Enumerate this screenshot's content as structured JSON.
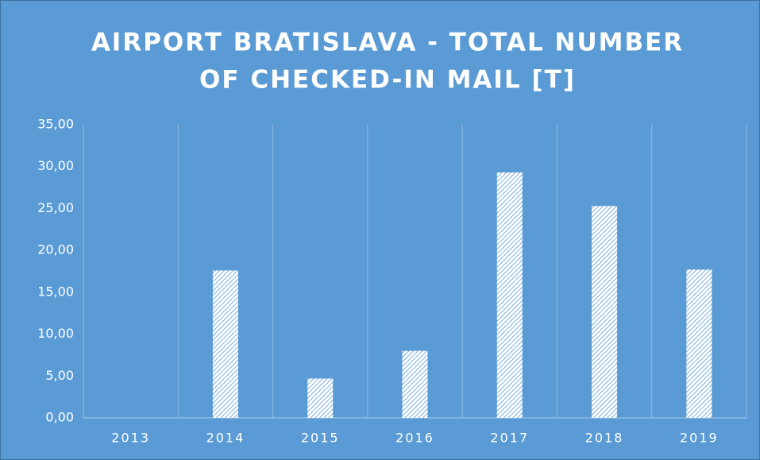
{
  "chart_data": {
    "type": "bar",
    "title": [
      "AIRPORT BRATISLAVA  - TOTAL NUMBER",
      "OF CHECKED-IN MAIL [T]"
    ],
    "categories": [
      "2013",
      "2014",
      "2015",
      "2016",
      "2017",
      "2018",
      "2019"
    ],
    "values": [
      0,
      17.6,
      4.7,
      8.0,
      29.3,
      25.3,
      17.7
    ],
    "color": "#ffffff",
    "ylim": [
      0,
      35
    ],
    "yticks": [
      {
        "value": 0,
        "label": "0,00"
      },
      {
        "value": 5,
        "label": "5,00"
      },
      {
        "value": 10,
        "label": "10,00"
      },
      {
        "value": 15,
        "label": "15,00"
      },
      {
        "value": 20,
        "label": "20,00"
      },
      {
        "value": 25,
        "label": "25,00"
      },
      {
        "value": 30,
        "label": "30,00"
      },
      {
        "value": 35,
        "label": "35,00"
      }
    ]
  }
}
